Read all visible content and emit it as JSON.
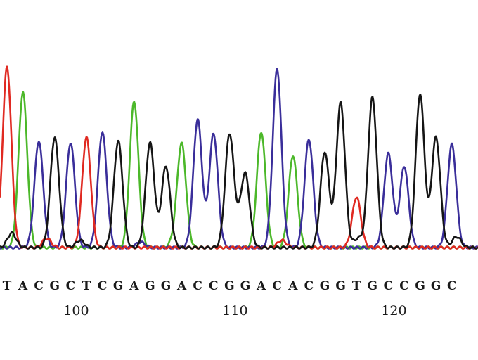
{
  "chart_data": {
    "type": "line",
    "title": "",
    "xlabel": "",
    "ylabel": "",
    "grid": false,
    "legend": "none",
    "colors": {
      "A": "#4cb82a",
      "C": "#3a2e9a",
      "G": "#151515",
      "T": "#e02a22"
    },
    "position_ticks": [
      {
        "label": "100",
        "position": 100
      },
      {
        "label": "110",
        "position": 110
      },
      {
        "label": "120",
        "position": 120
      }
    ],
    "first_position": 96,
    "bases": [
      "T",
      "A",
      "C",
      "G",
      "C",
      "T",
      "C",
      "G",
      "A",
      "G",
      "G",
      "A",
      "C",
      "C",
      "G",
      "G",
      "A",
      "C",
      "A",
      "C",
      "G",
      "G",
      "T",
      "G",
      "C",
      "C",
      "G",
      "G",
      "C"
    ],
    "peak_heights": [
      1.0,
      0.86,
      0.59,
      0.61,
      0.58,
      0.61,
      0.64,
      0.59,
      0.81,
      0.58,
      0.45,
      0.56,
      0.71,
      0.63,
      0.62,
      0.4,
      0.64,
      0.99,
      0.51,
      0.6,
      0.53,
      0.8,
      0.28,
      0.83,
      0.52,
      0.45,
      0.85,
      0.61,
      0.57
    ],
    "noise_peaks": [
      {
        "base": "G",
        "position": 96.3,
        "height": 0.08
      },
      {
        "base": "T",
        "position": 98.5,
        "height": 0.05
      },
      {
        "base": "G",
        "position": 100.6,
        "height": 0.04
      },
      {
        "base": "C",
        "position": 104.4,
        "height": 0.03
      },
      {
        "base": "A",
        "position": 106.6,
        "height": 0.05
      },
      {
        "base": "G",
        "position": 110.5,
        "height": 0.06
      },
      {
        "base": "T",
        "position": 113.3,
        "height": 0.04
      },
      {
        "base": "G",
        "position": 118.1,
        "height": 0.05
      },
      {
        "base": "G",
        "position": 124.3,
        "height": 0.06
      }
    ],
    "ylim": [
      0,
      1.05
    ]
  }
}
